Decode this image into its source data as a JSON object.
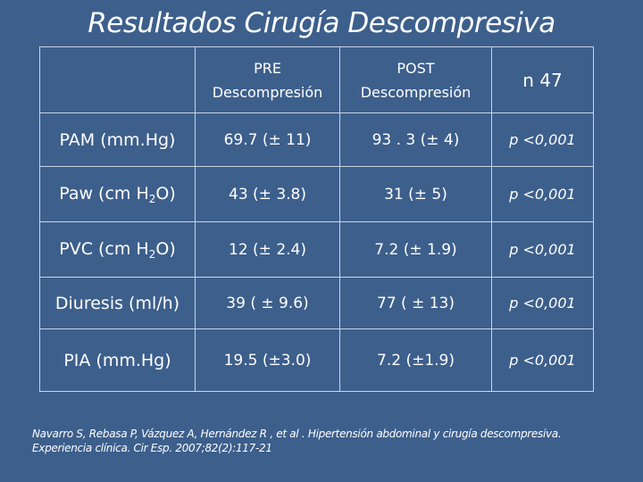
{
  "title": "Resultados Cirugía Descompresiva",
  "table": {
    "header": {
      "corner": "",
      "pre_line1": "PRE",
      "pre_line2": "Descompresión",
      "post_line1": "POST",
      "post_line2": "Descompresión",
      "n": "n 47"
    },
    "rows": [
      {
        "label": "PAM (mm.Hg)",
        "label_base": "",
        "label_sub": "",
        "label_end": "",
        "pre": "69.7  (± 11)",
        "post": "93 . 3  (± 4)",
        "p": "p <0,001"
      },
      {
        "label": "",
        "label_base": "Paw (cm H",
        "label_sub": "2",
        "label_end": "O)",
        "pre": "43  (± 3.8)",
        "post": "31  (± 5)",
        "p": "p <0,001"
      },
      {
        "label": "",
        "label_base": "PVC (cm H",
        "label_sub": "2",
        "label_end": "O)",
        "pre": "12  (± 2.4)",
        "post": "7.2   (± 1.9)",
        "p": "p <0,001"
      },
      {
        "label": "Diuresis (ml/h)",
        "label_base": "",
        "label_sub": "",
        "label_end": "",
        "pre": "39  ( ± 9.6)",
        "post": "77  ( ± 13)",
        "p": "p <0,001"
      },
      {
        "label": "PIA (mm.Hg)",
        "label_base": "",
        "label_sub": "",
        "label_end": "",
        "pre": "19.5   (±3.0)",
        "post": "7.2  (±1.9)",
        "p": "p <0,001"
      }
    ]
  },
  "reference_line1": "Navarro S, Rebasa P, Vázquez A, Hernández R , et al . Hipertensión abdominal y cirugía descompresiva.",
  "reference_line2": "Experiencia clínica. Cir Esp. 2007;82(2):117-21"
}
